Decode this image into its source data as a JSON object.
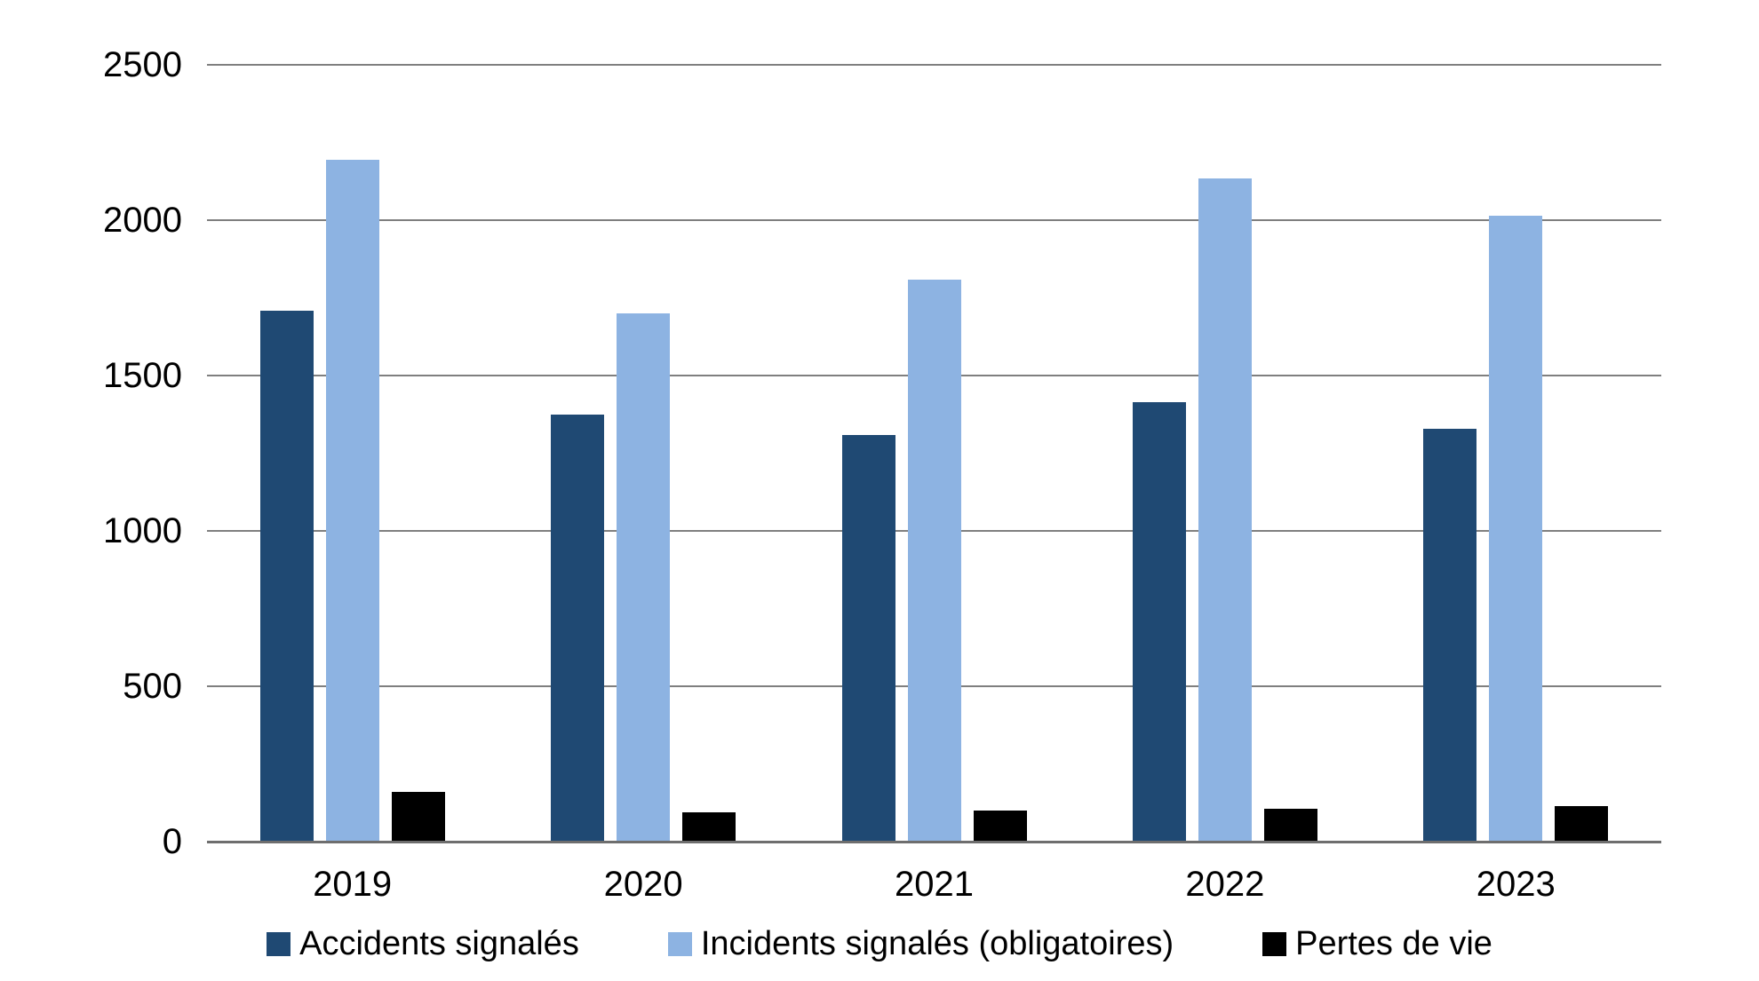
{
  "chart_data": {
    "type": "bar",
    "title": "",
    "categories": [
      "2019",
      "2020",
      "2021",
      "2022",
      "2023"
    ],
    "series": [
      {
        "name": "Accidents signalés",
        "color": "#1f4973",
        "values": [
          1710,
          1375,
          1310,
          1415,
          1330
        ]
      },
      {
        "name": "Incidents signalés (obligatoires)",
        "color": "#8db3e2",
        "values": [
          2195,
          1700,
          1810,
          2135,
          2015
        ]
      },
      {
        "name": "Pertes de vie",
        "color": "#000000",
        "values": [
          160,
          95,
          100,
          105,
          115
        ]
      }
    ],
    "xlabel": "",
    "ylabel": "",
    "y_axis": {
      "min": 0,
      "max": 2500,
      "ticks": [
        0,
        500,
        1000,
        1500,
        2000,
        2500
      ]
    },
    "grid": "horizontal",
    "legend_position": "bottom"
  },
  "colors": {
    "background": "#ffffff",
    "gridline": "#7f7f7f",
    "axis_line": "#6e6e6e",
    "text": "#000000"
  }
}
